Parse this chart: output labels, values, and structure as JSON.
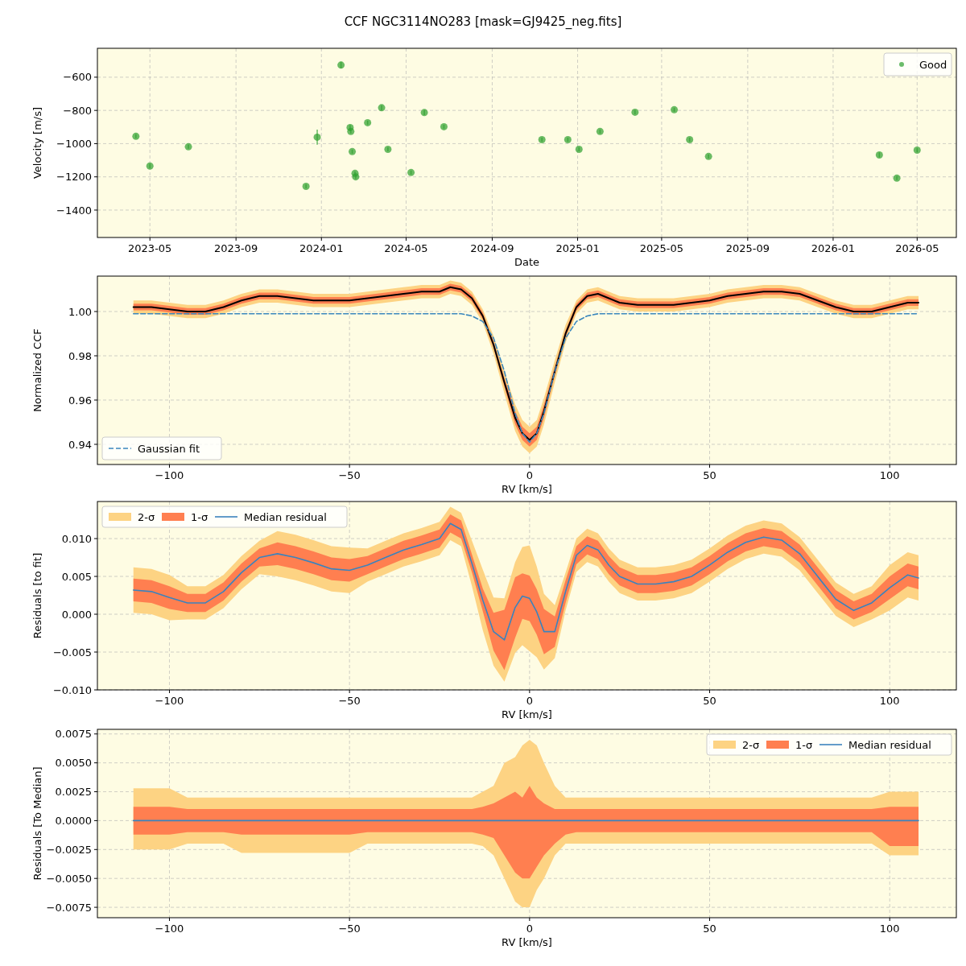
{
  "chart_data": [
    {
      "type": "scatter",
      "title": "CCF NGC3114NO283 [mask=GJ9425_neg.fits]",
      "xlabel": "Date",
      "ylabel": "Velocity [m/s]",
      "grid": true,
      "legend": "top right",
      "marker": "circle",
      "xlim": [
        "2023-02-15",
        "2026-06-26"
      ],
      "xticks": [
        "2023-05",
        "2023-09",
        "2024-01",
        "2024-05",
        "2024-09",
        "2025-01",
        "2025-05",
        "2025-09",
        "2026-01",
        "2026-05"
      ],
      "ylim": [
        -1565,
        -426
      ],
      "yticks": [
        {
          "value": -1400,
          "label": "−1400"
        },
        {
          "value": -1200,
          "label": "−1200"
        },
        {
          "value": -1000,
          "label": "−1000"
        },
        {
          "value": -800,
          "label": "−800"
        },
        {
          "value": -600,
          "label": "−600"
        }
      ],
      "x": [
        "2023-04-11",
        "2023-05-01",
        "2023-06-25",
        "2023-12-10",
        "2023-12-26",
        "2024-01-29",
        "2024-02-11",
        "2024-02-12",
        "2024-02-14",
        "2024-02-18",
        "2024-02-19",
        "2024-03-07",
        "2024-03-27",
        "2024-04-05",
        "2024-05-08",
        "2024-05-27",
        "2024-06-24",
        "2024-11-11",
        "2024-12-18",
        "2025-01-03",
        "2025-02-02",
        "2025-03-24",
        "2025-05-19",
        "2025-06-10",
        "2025-07-07",
        "2026-03-08",
        "2026-04-02",
        "2026-05-01"
      ],
      "series": [
        {
          "name": "Good",
          "color": "#2ca02c",
          "values": [
            -956,
            -1135,
            -1019,
            -1257,
            -961,
            -527,
            -903,
            -927,
            -1048,
            -1179,
            -1200,
            -874,
            -784,
            -1034,
            -1174,
            -813,
            -898,
            -976,
            -976,
            -1034,
            -927,
            -811,
            -796,
            -976,
            -1077,
            -1068,
            -1208,
            -1039
          ],
          "errors": [
            12,
            12,
            12,
            12,
            45,
            20,
            15,
            12,
            12,
            12,
            12,
            12,
            15,
            12,
            12,
            15,
            12,
            12,
            12,
            12,
            12,
            12,
            12,
            12,
            12,
            15,
            12,
            12
          ]
        }
      ]
    },
    {
      "type": "line",
      "xlabel": "RV [km/s]",
      "ylabel": "Normalized CCF",
      "grid": true,
      "legend": "bottom left",
      "xlim": [
        -120,
        118.5
      ],
      "xticks": [
        {
          "value": -100,
          "label": "−100"
        },
        {
          "value": -50,
          "label": "−50"
        },
        {
          "value": 0,
          "label": "0"
        },
        {
          "value": 50,
          "label": "50"
        },
        {
          "value": 100,
          "label": "100"
        }
      ],
      "ylim": [
        0.9309,
        1.016
      ],
      "yticks": [
        {
          "value": 0.94,
          "label": "0.94"
        },
        {
          "value": 0.96,
          "label": "0.96"
        },
        {
          "value": 0.98,
          "label": "0.98"
        },
        {
          "value": 1.0,
          "label": "1.00"
        }
      ],
      "x": [
        -110,
        -105,
        -100,
        -95,
        -90,
        -85,
        -80,
        -75,
        -70,
        -65,
        -60,
        -55,
        -50,
        -45,
        -40,
        -35,
        -30,
        -25,
        -22,
        -19,
        -16,
        -13,
        -10,
        -7,
        -4,
        -2,
        0,
        2,
        4,
        7,
        10,
        13,
        16,
        19,
        22,
        25,
        30,
        35,
        40,
        45,
        50,
        55,
        60,
        65,
        70,
        75,
        80,
        85,
        90,
        95,
        100,
        105,
        108
      ],
      "series": [
        {
          "type": "area",
          "color": "#fdd383",
          "values": [
            null,
            null,
            null,
            null,
            null,
            null,
            null,
            null,
            null,
            null,
            null,
            null,
            null,
            null,
            null,
            null,
            null,
            null,
            null,
            null,
            null,
            null,
            null,
            null,
            null,
            null,
            null,
            null,
            null,
            null,
            null,
            null,
            null,
            null,
            null,
            null,
            null,
            null,
            null,
            null,
            null,
            null,
            null,
            null,
            null,
            null,
            null,
            null,
            null,
            null,
            null,
            null,
            null
          ],
          "lower": [
            0.999,
            0.999,
            0.998,
            0.997,
            0.997,
            0.999,
            1.002,
            1.004,
            1.004,
            1.003,
            1.002,
            1.002,
            1.002,
            1.003,
            1.004,
            1.005,
            1.006,
            1.006,
            1.008,
            1.007,
            1.003,
            0.995,
            0.981,
            0.963,
            0.946,
            0.939,
            0.936,
            0.939,
            0.949,
            0.968,
            0.986,
            0.999,
            1.004,
            1.005,
            1.003,
            1.001,
            1.0,
            1.0,
            1.0,
            1.001,
            1.002,
            1.004,
            1.005,
            1.006,
            1.006,
            1.005,
            1.002,
            0.999,
            0.997,
            0.997,
            0.999,
            1.001,
            1.001
          ],
          "upper": [
            1.005,
            1.005,
            1.004,
            1.003,
            1.003,
            1.005,
            1.008,
            1.01,
            1.01,
            1.009,
            1.008,
            1.008,
            1.008,
            1.009,
            1.01,
            1.011,
            1.012,
            1.012,
            1.014,
            1.013,
            1.009,
            1.001,
            0.989,
            0.973,
            0.958,
            0.951,
            0.948,
            0.951,
            0.961,
            0.978,
            0.994,
            1.005,
            1.01,
            1.011,
            1.009,
            1.007,
            1.006,
            1.006,
            1.006,
            1.007,
            1.008,
            1.01,
            1.011,
            1.012,
            1.012,
            1.011,
            1.008,
            1.005,
            1.003,
            1.003,
            1.005,
            1.007,
            1.007
          ]
        },
        {
          "type": "area",
          "color": "#ff7f50",
          "values": [
            null,
            null,
            null,
            null,
            null,
            null,
            null,
            null,
            null,
            null,
            null,
            null,
            null,
            null,
            null,
            null,
            null,
            null,
            null,
            null,
            null,
            null,
            null,
            null,
            null,
            null,
            null,
            null,
            null,
            null,
            null,
            null,
            null,
            null,
            null,
            null,
            null,
            null,
            null,
            null,
            null,
            null,
            null,
            null,
            null,
            null,
            null,
            null,
            null,
            null,
            null,
            null,
            null
          ],
          "lower": [
            1.0005,
            1.0005,
            0.9995,
            0.9985,
            0.9985,
            1.0005,
            1.0035,
            1.0055,
            1.0055,
            1.0045,
            1.0035,
            1.0035,
            1.0035,
            1.0045,
            1.0055,
            1.0065,
            1.0075,
            1.0075,
            1.0095,
            1.0085,
            1.0045,
            0.9965,
            0.9835,
            0.966,
            0.949,
            0.942,
            0.939,
            0.942,
            0.952,
            0.971,
            0.9885,
            1.0005,
            1.0055,
            1.0065,
            1.0045,
            1.0025,
            1.0015,
            1.0015,
            1.0015,
            1.0025,
            1.0035,
            1.0055,
            1.0065,
            1.0075,
            1.0075,
            1.0065,
            1.0035,
            1.0005,
            0.9985,
            0.9985,
            1.0005,
            1.0025,
            1.0025
          ],
          "upper": [
            1.0035,
            1.0035,
            1.0025,
            1.0015,
            1.0015,
            1.0035,
            1.0065,
            1.0085,
            1.0085,
            1.0075,
            1.0065,
            1.0065,
            1.0065,
            1.0075,
            1.0085,
            1.0095,
            1.0105,
            1.0105,
            1.0125,
            1.0115,
            1.0075,
            0.9995,
            0.9865,
            0.97,
            0.955,
            0.948,
            0.945,
            0.948,
            0.958,
            0.975,
            0.9915,
            1.0035,
            1.0085,
            1.0095,
            1.0075,
            1.0055,
            1.0045,
            1.0045,
            1.0045,
            1.0055,
            1.0065,
            1.0085,
            1.0095,
            1.0105,
            1.0105,
            1.0095,
            1.0065,
            1.0035,
            1.0015,
            1.0015,
            1.0035,
            1.0055,
            1.0055
          ]
        },
        {
          "color": "#000000",
          "values": [
            1.002,
            1.002,
            1.001,
            1.0,
            1.0,
            1.002,
            1.005,
            1.007,
            1.007,
            1.006,
            1.005,
            1.005,
            1.005,
            1.006,
            1.007,
            1.008,
            1.009,
            1.009,
            1.011,
            1.01,
            1.006,
            0.998,
            0.985,
            0.968,
            0.952,
            0.945,
            0.942,
            0.945,
            0.955,
            0.973,
            0.99,
            1.002,
            1.007,
            1.008,
            1.006,
            1.004,
            1.003,
            1.003,
            1.003,
            1.004,
            1.005,
            1.007,
            1.008,
            1.009,
            1.009,
            1.008,
            1.005,
            1.002,
            1.0,
            1.0,
            1.002,
            1.004,
            1.004
          ]
        },
        {
          "name": "Gaussian fit",
          "color": "#3a87bd",
          "line_style": "dashed",
          "values": [
            0.999,
            0.999,
            0.999,
            0.999,
            0.999,
            0.999,
            0.999,
            0.999,
            0.999,
            0.999,
            0.999,
            0.999,
            0.999,
            0.999,
            0.999,
            0.999,
            0.999,
            0.999,
            0.999,
            0.999,
            0.998,
            0.9955,
            0.988,
            0.973,
            0.954,
            0.945,
            0.941,
            0.945,
            0.954,
            0.973,
            0.988,
            0.9955,
            0.998,
            0.999,
            0.999,
            0.999,
            0.999,
            0.999,
            0.999,
            0.999,
            0.999,
            0.999,
            0.999,
            0.999,
            0.999,
            0.999,
            0.999,
            0.999,
            0.999,
            0.999,
            0.999,
            0.999,
            0.999
          ]
        }
      ]
    },
    {
      "type": "line",
      "xlabel": "RV [km/s]",
      "ylabel": "Residuals [to fit]",
      "grid": true,
      "legend": "top left",
      "xlim": [
        -120,
        118.5
      ],
      "xticks": [
        {
          "value": -100,
          "label": "−100"
        },
        {
          "value": -50,
          "label": "−50"
        },
        {
          "value": 0,
          "label": "0"
        },
        {
          "value": 50,
          "label": "50"
        },
        {
          "value": 100,
          "label": "100"
        }
      ],
      "ylim": [
        -0.01,
        0.0149
      ],
      "yticks": [
        {
          "value": -0.01,
          "label": "−0.010"
        },
        {
          "value": -0.005,
          "label": "−0.005"
        },
        {
          "value": 0,
          "label": "0.000"
        },
        {
          "value": 0.005,
          "label": "0.005"
        },
        {
          "value": 0.01,
          "label": "0.010"
        }
      ],
      "x": [
        -110,
        -105,
        -100,
        -95,
        -90,
        -85,
        -80,
        -75,
        -70,
        -65,
        -60,
        -55,
        -50,
        -45,
        -40,
        -35,
        -30,
        -25,
        -22,
        -19,
        -16,
        -13,
        -10,
        -7,
        -4,
        -2,
        0,
        2,
        4,
        7,
        10,
        13,
        16,
        19,
        22,
        25,
        30,
        35,
        40,
        45,
        50,
        55,
        60,
        65,
        70,
        75,
        80,
        85,
        90,
        95,
        100,
        105,
        108
      ],
      "series": [
        {
          "type": "area",
          "name": "2-σ",
          "color": "#fdd383",
          "values": [
            null,
            null,
            null,
            null,
            null,
            null,
            null,
            null,
            null,
            null,
            null,
            null,
            null,
            null,
            null,
            null,
            null,
            null,
            null,
            null,
            null,
            null,
            null,
            null,
            null,
            null,
            null,
            null,
            null,
            null,
            null,
            null,
            null,
            null,
            null,
            null,
            null,
            null,
            null,
            null,
            null,
            null,
            null,
            null,
            null,
            null,
            null,
            null,
            null,
            null,
            null,
            null,
            null
          ],
          "lower": [
            0.0002,
            0.0,
            -0.0008,
            -0.0007,
            -0.0007,
            0.0008,
            0.0033,
            0.0053,
            0.005,
            0.0045,
            0.0038,
            0.003,
            0.0028,
            0.0043,
            0.0053,
            0.0063,
            0.007,
            0.0078,
            0.0098,
            0.009,
            0.0037,
            -0.0021,
            -0.0068,
            -0.0089,
            -0.0051,
            -0.0041,
            -0.0049,
            -0.0057,
            -0.0073,
            -0.0058,
            0.0005,
            0.0056,
            0.0069,
            0.0063,
            0.0043,
            0.0028,
            0.0018,
            0.0018,
            0.0021,
            0.0028,
            0.0043,
            0.006,
            0.0073,
            0.008,
            0.0076,
            0.0058,
            0.0028,
            -0.0002,
            -0.0017,
            -0.0007,
            0.0005,
            0.0022,
            0.0018
          ],
          "upper": [
            0.0062,
            0.006,
            0.0052,
            0.0037,
            0.0037,
            0.0052,
            0.0077,
            0.0097,
            0.011,
            0.0105,
            0.0098,
            0.009,
            0.0088,
            0.0087,
            0.0097,
            0.0107,
            0.0114,
            0.0122,
            0.0142,
            0.0134,
            0.0097,
            0.0059,
            0.0022,
            0.0021,
            0.0069,
            0.0089,
            0.0091,
            0.0063,
            0.0027,
            0.0012,
            0.0055,
            0.01,
            0.0113,
            0.0107,
            0.0087,
            0.0072,
            0.0062,
            0.0062,
            0.0065,
            0.0072,
            0.0087,
            0.0104,
            0.0117,
            0.0124,
            0.012,
            0.0102,
            0.0072,
            0.0042,
            0.0027,
            0.0037,
            0.0065,
            0.0082,
            0.0078
          ]
        },
        {
          "type": "area",
          "name": "1-σ",
          "color": "#ff7f50",
          "values": [
            null,
            null,
            null,
            null,
            null,
            null,
            null,
            null,
            null,
            null,
            null,
            null,
            null,
            null,
            null,
            null,
            null,
            null,
            null,
            null,
            null,
            null,
            null,
            null,
            null,
            null,
            null,
            null,
            null,
            null,
            null,
            null,
            null,
            null,
            null,
            null,
            null,
            null,
            null,
            null,
            null,
            null,
            null,
            null,
            null,
            null,
            null,
            null,
            null,
            null,
            null,
            null,
            null
          ],
          "lower": [
            0.0017,
            0.0015,
            0.0007,
            0.0003,
            0.0003,
            0.0018,
            0.0043,
            0.0063,
            0.0065,
            0.006,
            0.0053,
            0.0045,
            0.0043,
            0.0053,
            0.0063,
            0.0073,
            0.008,
            0.0088,
            0.0108,
            0.01,
            0.0055,
            0.0004,
            -0.0048,
            -0.0074,
            -0.0031,
            -0.0006,
            -0.0009,
            -0.0027,
            -0.0053,
            -0.0043,
            0.0015,
            0.0066,
            0.0079,
            0.0073,
            0.0053,
            0.0038,
            0.0028,
            0.0028,
            0.0031,
            0.0038,
            0.0053,
            0.007,
            0.0083,
            0.009,
            0.0086,
            0.0068,
            0.0038,
            0.0008,
            -0.0007,
            0.0003,
            0.002,
            0.0037,
            0.0033
          ],
          "upper": [
            0.0047,
            0.0045,
            0.0037,
            0.0027,
            0.0027,
            0.0042,
            0.0067,
            0.0087,
            0.0095,
            0.009,
            0.0083,
            0.0075,
            0.0073,
            0.0077,
            0.0087,
            0.0097,
            0.0104,
            0.0112,
            0.0132,
            0.0124,
            0.0079,
            0.0034,
            0.0002,
            0.0006,
            0.0049,
            0.0054,
            0.0051,
            0.0033,
            0.0007,
            -0.0003,
            0.0045,
            0.009,
            0.0103,
            0.0097,
            0.0077,
            0.0062,
            0.0052,
            0.0052,
            0.0055,
            0.0062,
            0.0077,
            0.0094,
            0.0107,
            0.0114,
            0.011,
            0.0092,
            0.0062,
            0.0032,
            0.0017,
            0.0027,
            0.005,
            0.0067,
            0.0063
          ]
        },
        {
          "name": "Median residual",
          "color": "#3b83bd",
          "values": [
            0.0032,
            0.003,
            0.0022,
            0.0015,
            0.0015,
            0.003,
            0.0055,
            0.0075,
            0.008,
            0.0075,
            0.0068,
            0.006,
            0.0058,
            0.0065,
            0.0075,
            0.0085,
            0.0092,
            0.01,
            0.012,
            0.0112,
            0.0067,
            0.0019,
            -0.0023,
            -0.0034,
            0.0009,
            0.0024,
            0.0021,
            0.0003,
            -0.0023,
            -0.0023,
            0.003,
            0.0078,
            0.0091,
            0.0085,
            0.0065,
            0.005,
            0.004,
            0.004,
            0.0043,
            0.005,
            0.0065,
            0.0082,
            0.0095,
            0.0102,
            0.0098,
            0.008,
            0.005,
            0.002,
            0.0005,
            0.0015,
            0.0035,
            0.0052,
            0.0048
          ]
        }
      ]
    },
    {
      "type": "line",
      "xlabel": "RV [km/s]",
      "ylabel": "Residuals [To Median]",
      "grid": true,
      "legend": "top right",
      "xlim": [
        -120,
        118.5
      ],
      "xticks": [
        {
          "value": -100,
          "label": "−100"
        },
        {
          "value": -50,
          "label": "−50"
        },
        {
          "value": 0,
          "label": "0"
        },
        {
          "value": 50,
          "label": "50"
        },
        {
          "value": 100,
          "label": "100"
        }
      ],
      "ylim": [
        -0.0084,
        0.0079
      ],
      "yticks": [
        {
          "value": -0.0075,
          "label": "−0.0075"
        },
        {
          "value": -0.005,
          "label": "−0.0050"
        },
        {
          "value": -0.0025,
          "label": "−0.0025"
        },
        {
          "value": 0,
          "label": "0.0000"
        },
        {
          "value": 0.0025,
          "label": "0.0025"
        },
        {
          "value": 0.005,
          "label": "0.0050"
        },
        {
          "value": 0.0075,
          "label": "0.0075"
        }
      ],
      "x": [
        -110,
        -105,
        -100,
        -95,
        -90,
        -85,
        -80,
        -75,
        -70,
        -65,
        -60,
        -55,
        -50,
        -45,
        -40,
        -35,
        -30,
        -25,
        -22,
        -19,
        -16,
        -13,
        -10,
        -7,
        -4,
        -2,
        0,
        2,
        4,
        7,
        10,
        13,
        16,
        19,
        22,
        25,
        30,
        35,
        40,
        45,
        50,
        55,
        60,
        65,
        70,
        75,
        80,
        85,
        90,
        95,
        100,
        105,
        108
      ],
      "series": [
        {
          "type": "area",
          "name": "2-σ",
          "color": "#fdd383",
          "values": [
            null,
            null,
            null,
            null,
            null,
            null,
            null,
            null,
            null,
            null,
            null,
            null,
            null,
            null,
            null,
            null,
            null,
            null,
            null,
            null,
            null,
            null,
            null,
            null,
            null,
            null,
            null,
            null,
            null,
            null,
            null,
            null,
            null,
            null,
            null,
            null,
            null,
            null,
            null,
            null,
            null,
            null,
            null,
            null,
            null,
            null,
            null,
            null,
            null,
            null,
            null,
            null,
            null
          ],
          "lower": [
            -0.0025,
            -0.0025,
            -0.0025,
            -0.002,
            -0.002,
            -0.002,
            -0.0028,
            -0.0028,
            -0.0028,
            -0.0028,
            -0.0028,
            -0.0028,
            -0.0028,
            -0.002,
            -0.002,
            -0.002,
            -0.002,
            -0.002,
            -0.002,
            -0.002,
            -0.002,
            -0.0022,
            -0.003,
            -0.005,
            -0.007,
            -0.0075,
            -0.0075,
            -0.006,
            -0.005,
            -0.003,
            -0.002,
            -0.002,
            -0.002,
            -0.002,
            -0.002,
            -0.002,
            -0.002,
            -0.002,
            -0.002,
            -0.002,
            -0.002,
            -0.002,
            -0.002,
            -0.002,
            -0.002,
            -0.002,
            -0.002,
            -0.002,
            -0.002,
            -0.002,
            -0.003,
            -0.003,
            -0.003
          ],
          "upper": [
            0.0028,
            0.0028,
            0.0028,
            0.002,
            0.002,
            0.002,
            0.002,
            0.002,
            0.002,
            0.002,
            0.002,
            0.002,
            0.002,
            0.002,
            0.002,
            0.002,
            0.002,
            0.002,
            0.002,
            0.002,
            0.002,
            0.0025,
            0.003,
            0.005,
            0.0055,
            0.0065,
            0.007,
            0.0065,
            0.005,
            0.003,
            0.002,
            0.002,
            0.002,
            0.002,
            0.002,
            0.002,
            0.002,
            0.002,
            0.002,
            0.002,
            0.002,
            0.002,
            0.002,
            0.002,
            0.002,
            0.002,
            0.002,
            0.002,
            0.002,
            0.002,
            0.0025,
            0.0025,
            0.0025
          ]
        },
        {
          "type": "area",
          "name": "1-σ",
          "color": "#ff7f50",
          "values": [
            null,
            null,
            null,
            null,
            null,
            null,
            null,
            null,
            null,
            null,
            null,
            null,
            null,
            null,
            null,
            null,
            null,
            null,
            null,
            null,
            null,
            null,
            null,
            null,
            null,
            null,
            null,
            null,
            null,
            null,
            null,
            null,
            null,
            null,
            null,
            null,
            null,
            null,
            null,
            null,
            null,
            null,
            null,
            null,
            null,
            null,
            null,
            null,
            null,
            null,
            null,
            null,
            null
          ],
          "lower": [
            -0.0012,
            -0.0012,
            -0.0012,
            -0.001,
            -0.001,
            -0.001,
            -0.0012,
            -0.0012,
            -0.0012,
            -0.0012,
            -0.0012,
            -0.0012,
            -0.0012,
            -0.001,
            -0.001,
            -0.001,
            -0.001,
            -0.001,
            -0.001,
            -0.001,
            -0.001,
            -0.0012,
            -0.0015,
            -0.003,
            -0.0045,
            -0.005,
            -0.005,
            -0.004,
            -0.003,
            -0.002,
            -0.0012,
            -0.001,
            -0.001,
            -0.001,
            -0.001,
            -0.001,
            -0.001,
            -0.001,
            -0.001,
            -0.001,
            -0.001,
            -0.001,
            -0.001,
            -0.001,
            -0.001,
            -0.001,
            -0.001,
            -0.001,
            -0.001,
            -0.001,
            -0.0022,
            -0.0022,
            -0.0022
          ],
          "upper": [
            0.0012,
            0.0012,
            0.0012,
            0.001,
            0.001,
            0.001,
            0.001,
            0.001,
            0.001,
            0.001,
            0.001,
            0.001,
            0.001,
            0.001,
            0.001,
            0.001,
            0.001,
            0.001,
            0.001,
            0.001,
            0.001,
            0.0012,
            0.0015,
            0.002,
            0.0025,
            0.002,
            0.003,
            0.002,
            0.0015,
            0.001,
            0.001,
            0.001,
            0.001,
            0.001,
            0.001,
            0.001,
            0.001,
            0.001,
            0.001,
            0.001,
            0.001,
            0.001,
            0.001,
            0.001,
            0.001,
            0.001,
            0.001,
            0.001,
            0.001,
            0.001,
            0.0012,
            0.0012,
            0.0012
          ]
        },
        {
          "name": "Median residual",
          "color": "#3b83bd",
          "values": [
            0,
            0,
            0,
            0,
            0,
            0,
            0,
            0,
            0,
            0,
            0,
            0,
            0,
            0,
            0,
            0,
            0,
            0,
            0,
            0,
            0,
            0,
            0,
            0,
            0,
            0,
            0,
            0,
            0,
            0,
            0,
            0,
            0,
            0,
            0,
            0,
            0,
            0,
            0,
            0,
            0,
            0,
            0,
            0,
            0,
            0,
            0,
            0,
            0,
            0,
            0,
            0,
            0
          ]
        }
      ]
    }
  ]
}
